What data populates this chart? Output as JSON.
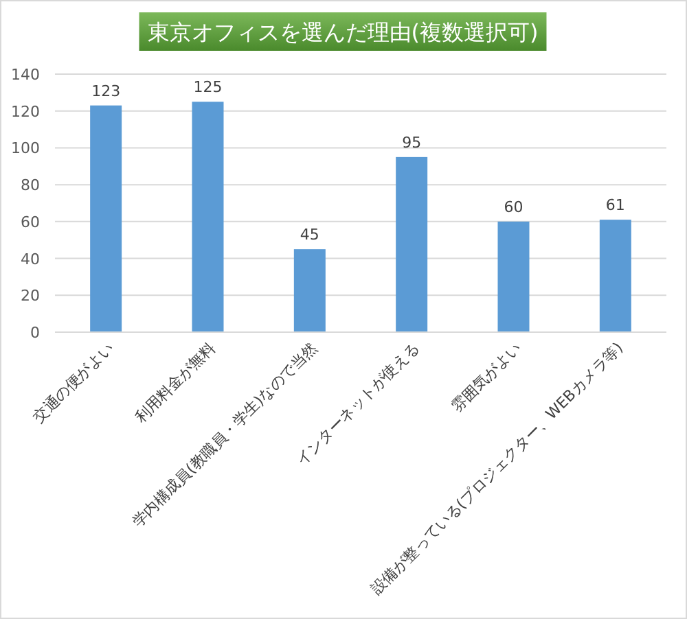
{
  "chart_data": {
    "type": "bar",
    "title": "東京オフィスを選んだ理由(複数選択可)",
    "categories": [
      "交通の便がよい",
      "利用料金が無料",
      "学内構成員(教職員・学生)なので当然",
      "インターネットが使える",
      "雰囲気がよい",
      "設備が整っている(プロジェクター、WEBカメラ等)"
    ],
    "values": [
      123,
      125,
      45,
      95,
      60,
      61
    ],
    "color": "#5b9bd5",
    "ylim": [
      0,
      140
    ],
    "yticks": [
      0,
      20,
      40,
      60,
      80,
      100,
      120,
      140
    ],
    "grid": "y",
    "data_labels": true
  }
}
